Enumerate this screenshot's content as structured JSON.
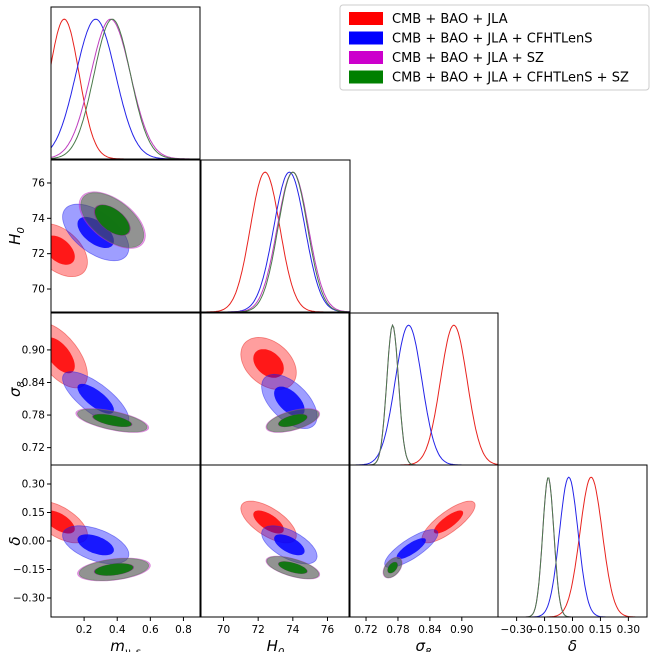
{
  "chart_data": {
    "type": "triangle-corner-plot",
    "parameters": [
      {
        "key": "mnu",
        "label": "m_{ν_s}",
        "range": [
          0.0,
          0.9
        ],
        "ticks": [
          0.2,
          0.4,
          0.6,
          0.8
        ],
        "tick_labels": [
          "0.2",
          "0.4",
          "0.6",
          "0.8"
        ]
      },
      {
        "key": "H0",
        "label": "H_0",
        "range": [
          68.7,
          77.3
        ],
        "ticks": [
          70,
          72,
          74,
          76
        ],
        "tick_labels": [
          "70",
          "72",
          "74",
          "76"
        ]
      },
      {
        "key": "s8",
        "label": "σ_8",
        "range": [
          0.688,
          0.968
        ],
        "ticks": [
          0.72,
          0.78,
          0.84,
          0.9
        ],
        "tick_labels": [
          "0.72",
          "0.78",
          "0.84",
          "0.90"
        ]
      },
      {
        "key": "delta",
        "label": "δ",
        "range": [
          -0.4,
          0.4
        ],
        "ticks": [
          -0.3,
          -0.15,
          0.0,
          0.15,
          0.3
        ],
        "tick_labels": [
          "−0.30",
          "−0.15",
          "0.00",
          "0.15",
          "0.30"
        ]
      }
    ],
    "legend_position": "top-right",
    "series": [
      {
        "name": "CMB + BAO + JLA",
        "color": "#ff0000",
        "line_color": "#e8231e",
        "mean": {
          "mnu": 0.08,
          "H0": 72.4,
          "s8": 0.885,
          "delta": 0.1
        },
        "sigma": {
          "mnu": 0.09,
          "H0": 0.85,
          "s8": 0.025,
          "delta": 0.06
        },
        "peak_x": [
          0.08,
          72.4,
          0.885,
          0.1
        ],
        "mnu_halfnormal": false,
        "ellipses": {
          "0-1": {
            "c": [
              0.05,
              72.2
            ],
            "s": [
              0.17,
              1.5
            ],
            "r": -0.45
          },
          "0-2": {
            "c": [
              0.05,
              0.89
            ],
            "s": [
              0.17,
              0.06
            ],
            "r": -0.6
          },
          "0-3": {
            "c": [
              0.05,
              0.1
            ],
            "s": [
              0.17,
              0.11
            ],
            "r": -0.6
          },
          "1-2": {
            "c": [
              72.6,
              0.875
            ],
            "s": [
              1.6,
              0.048
            ],
            "r": -0.35
          },
          "1-3": {
            "c": [
              72.6,
              0.1
            ],
            "s": [
              1.6,
              0.11
            ],
            "r": -0.65
          },
          "2-3": {
            "c": [
              0.875,
              0.1
            ],
            "s": [
              0.05,
              0.11
            ],
            "r": 0.8
          }
        }
      },
      {
        "name": "CMB + BAO + JLA + CFHTLenS",
        "color": "#0000ff",
        "line_color": "#2424e8",
        "mean": {
          "mnu": 0.27,
          "H0": 73.8,
          "s8": 0.8,
          "delta": -0.02
        },
        "sigma": {
          "mnu": 0.12,
          "H0": 0.9,
          "s8": 0.025,
          "delta": 0.05
        },
        "peak_x": [
          0.27,
          73.8,
          0.8,
          -0.02
        ],
        "mnu_halfnormal": false,
        "ellipses": {
          "0-1": {
            "c": [
              0.27,
              73.2
            ],
            "s": [
              0.2,
              1.6
            ],
            "r": -0.55
          },
          "0-2": {
            "c": [
              0.27,
              0.81
            ],
            "s": [
              0.2,
              0.05
            ],
            "r": -0.75
          },
          "0-3": {
            "c": [
              0.27,
              -0.02
            ],
            "s": [
              0.2,
              0.1
            ],
            "r": -0.5
          },
          "1-2": {
            "c": [
              73.8,
              0.805
            ],
            "s": [
              1.6,
              0.05
            ],
            "r": -0.55
          },
          "1-3": {
            "c": [
              73.8,
              -0.02
            ],
            "s": [
              1.6,
              0.1
            ],
            "r": -0.6
          },
          "2-3": {
            "c": [
              0.805,
              -0.04
            ],
            "s": [
              0.05,
              0.1
            ],
            "r": 0.8
          }
        }
      },
      {
        "name": "CMB + BAO + JLA + SZ",
        "color": "#cc00cc",
        "line_color": "#bf3fbf",
        "mean": {
          "mnu": 0.36,
          "H0": 74.0,
          "s8": 0.77,
          "delta": -0.13
        },
        "sigma": {
          "mnu": 0.12,
          "H0": 0.9,
          "s8": 0.011,
          "delta": 0.03
        },
        "peak_x": [
          0.36,
          74.0,
          0.77,
          -0.13
        ],
        "mnu_halfnormal": false,
        "ellipses": {
          "0-1": {
            "c": [
              0.37,
              73.9
            ],
            "s": [
              0.2,
              1.6
            ],
            "r": -0.55
          },
          "0-2": {
            "c": [
              0.37,
              0.77
            ],
            "s": [
              0.22,
              0.022
            ],
            "r": -0.6
          },
          "0-3": {
            "c": [
              0.38,
              -0.15
            ],
            "s": [
              0.22,
              0.06
            ],
            "r": 0.35
          },
          "1-2": {
            "c": [
              74.0,
              0.77
            ],
            "s": [
              1.55,
              0.022
            ],
            "r": 0.55
          },
          "1-3": {
            "c": [
              74.0,
              -0.14
            ],
            "s": [
              1.55,
              0.06
            ],
            "r": -0.6
          },
          "2-3": {
            "c": [
              0.77,
              -0.14
            ],
            "s": [
              0.018,
              0.055
            ],
            "r": 0.45
          }
        }
      },
      {
        "name": "CMB + BAO + JLA + CFHTLenS + SZ",
        "color": "#008000",
        "line_color": "#4a7a4a",
        "mean": {
          "mnu": 0.37,
          "H0": 74.0,
          "s8": 0.77,
          "delta": -0.13
        },
        "sigma": {
          "mnu": 0.11,
          "H0": 0.85,
          "s8": 0.011,
          "delta": 0.03
        },
        "peak_x": [
          0.37,
          74.0,
          0.77,
          -0.13
        ],
        "mnu_halfnormal": false,
        "ellipses": {
          "0-1": {
            "c": [
              0.37,
              73.9
            ],
            "s": [
              0.19,
              1.55
            ],
            "r": -0.55
          },
          "0-2": {
            "c": [
              0.37,
              0.77
            ],
            "s": [
              0.21,
              0.021
            ],
            "r": -0.6
          },
          "0-3": {
            "c": [
              0.38,
              -0.15
            ],
            "s": [
              0.21,
              0.058
            ],
            "r": 0.35
          },
          "1-2": {
            "c": [
              74.0,
              0.77
            ],
            "s": [
              1.5,
              0.021
            ],
            "r": 0.55
          },
          "1-3": {
            "c": [
              74.0,
              -0.14
            ],
            "s": [
              1.5,
              0.058
            ],
            "r": -0.6
          },
          "2-3": {
            "c": [
              0.77,
              -0.14
            ],
            "s": [
              0.017,
              0.053
            ],
            "r": 0.45
          }
        }
      }
    ]
  }
}
